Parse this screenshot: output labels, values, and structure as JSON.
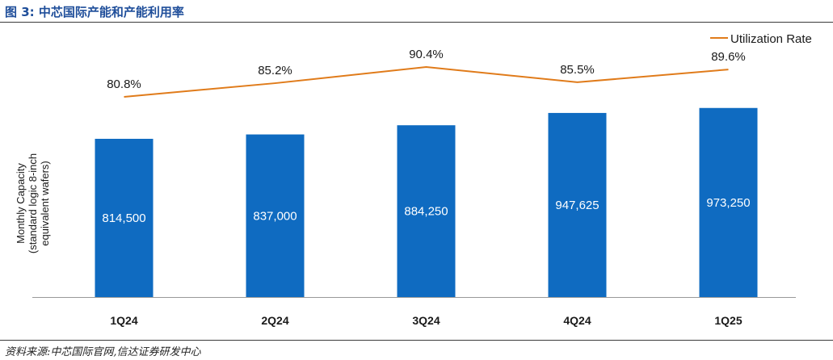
{
  "figure": {
    "title": "图 3:  中芯国际产能和产能利用率",
    "source": "资料来源:中芯国际官网,信达证券研发中心"
  },
  "chart_data": {
    "type": "bar",
    "categories": [
      "1Q24",
      "2Q24",
      "3Q24",
      "4Q24",
      "1Q25"
    ],
    "series": [
      {
        "values": [
          814500,
          837000,
          884250,
          947625,
          973250
        ],
        "labels": [
          "814,500",
          "837,000",
          "884,250",
          "947,625",
          "973,250"
        ],
        "color": "#0f6bc1"
      },
      {
        "name": "Utilization Rate",
        "type": "line",
        "values": [
          80.8,
          85.2,
          90.4,
          85.5,
          89.6
        ],
        "labels": [
          "80.8%",
          "85.2%",
          "90.4%",
          "85.5%",
          "89.6%"
        ],
        "color": "#e07b1a"
      }
    ],
    "ylabel_lines": [
      "Monthly Capacity",
      "(standard logic 8-inch",
      "equivalent wafers)"
    ],
    "legend": "top-right",
    "grid": false
  }
}
